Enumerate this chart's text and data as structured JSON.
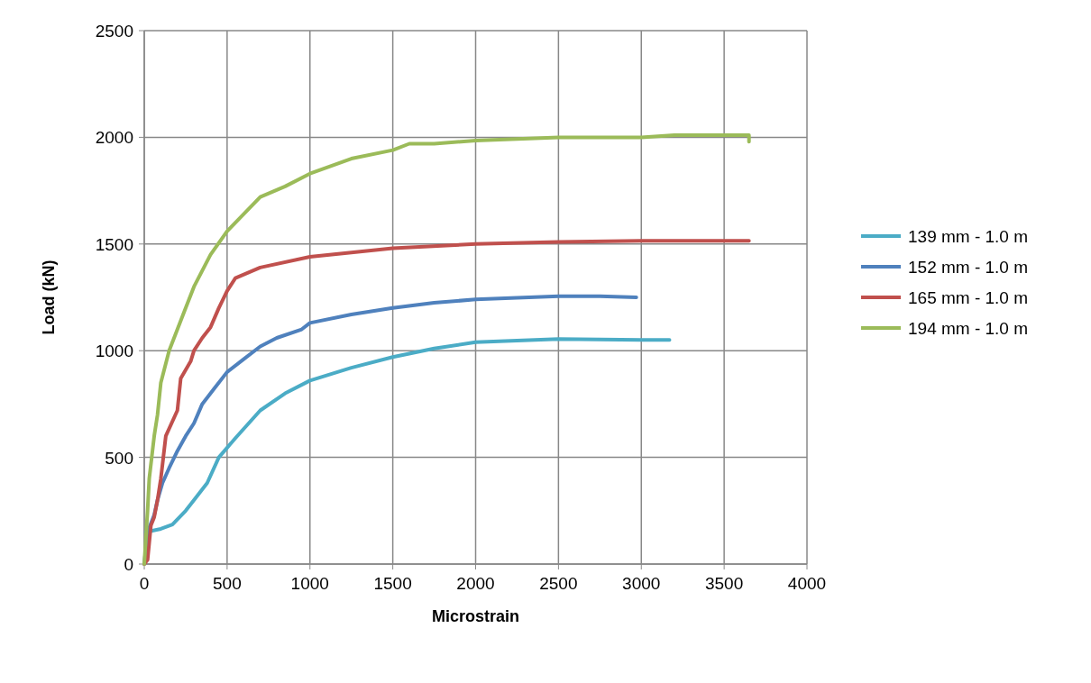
{
  "chart_data": {
    "type": "line",
    "xlabel": "Microstrain",
    "ylabel": "Load (kN)",
    "xlim": [
      0,
      4000
    ],
    "xticks": [
      0,
      500,
      1000,
      1500,
      2000,
      2500,
      3000,
      3500,
      4000
    ],
    "ylim": [
      0,
      2500
    ],
    "yticks": [
      0,
      500,
      1000,
      1500,
      2000,
      2500
    ],
    "grid": true,
    "legend": "right",
    "marker": "none",
    "line_style": "solid",
    "series": [
      {
        "name": "139 mm - 1.0 m",
        "color": "#4bacc6",
        "x": [
          10,
          100,
          170,
          250,
          300,
          380,
          450,
          550,
          700,
          850,
          1000,
          1250,
          1500,
          1750,
          2000,
          2500,
          3000,
          3170
        ],
        "values": [
          150,
          165,
          185,
          250,
          300,
          380,
          500,
          590,
          720,
          800,
          860,
          920,
          970,
          1010,
          1040,
          1055,
          1050,
          1050
        ]
      },
      {
        "name": "152 mm - 1.0 m",
        "color": "#4f81bd",
        "x": [
          0,
          20,
          60,
          80,
          110,
          150,
          200,
          250,
          300,
          350,
          420,
          500,
          600,
          700,
          800,
          950,
          1000,
          1250,
          1500,
          1750,
          2000,
          2500,
          2750,
          2970
        ],
        "values": [
          0,
          150,
          230,
          300,
          380,
          450,
          530,
          600,
          660,
          750,
          820,
          900,
          960,
          1020,
          1060,
          1100,
          1130,
          1170,
          1200,
          1225,
          1240,
          1255,
          1255,
          1250
        ]
      },
      {
        "name": "165 mm - 1.0 m",
        "color": "#c0504d",
        "x": [
          0,
          20,
          30,
          40,
          60,
          80,
          100,
          130,
          200,
          220,
          280,
          300,
          350,
          400,
          450,
          500,
          550,
          700,
          1000,
          1500,
          2000,
          2500,
          3000,
          3650
        ],
        "values": [
          0,
          20,
          100,
          180,
          220,
          300,
          400,
          600,
          720,
          870,
          950,
          1000,
          1060,
          1110,
          1200,
          1280,
          1340,
          1390,
          1440,
          1480,
          1500,
          1510,
          1515,
          1515
        ]
      },
      {
        "name": "194 mm - 1.0 m",
        "color": "#9bbb59",
        "x": [
          0,
          20,
          30,
          60,
          80,
          100,
          150,
          200,
          250,
          300,
          400,
          500,
          600,
          700,
          850,
          1000,
          1250,
          1500,
          1600,
          1750,
          2000,
          2500,
          3000,
          3200,
          3650,
          3650
        ],
        "values": [
          0,
          250,
          400,
          600,
          700,
          850,
          1000,
          1100,
          1200,
          1300,
          1450,
          1560,
          1640,
          1720,
          1770,
          1830,
          1900,
          1940,
          1970,
          1970,
          1985,
          2000,
          2000,
          2010,
          2010,
          1980
        ]
      }
    ]
  }
}
